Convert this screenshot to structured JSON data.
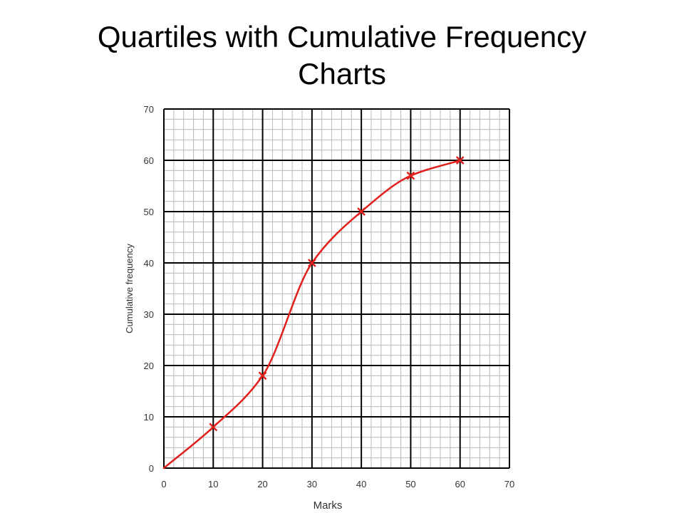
{
  "title_line1": "Quartiles with Cumulative Frequency",
  "title_line2": "Charts",
  "colors": {
    "curve": "#e0201c",
    "marker": "#e0201c",
    "grid_major": "#000000",
    "grid_minor": "#b8b8b8",
    "text": "#333333"
  },
  "chart_data": {
    "type": "line",
    "xlabel": "Marks",
    "ylabel": "Cumulative frequency",
    "xlim": [
      0,
      70
    ],
    "ylim": [
      0,
      70
    ],
    "x_ticks": [
      0,
      10,
      20,
      30,
      40,
      50,
      60,
      70
    ],
    "y_ticks": [
      0,
      10,
      20,
      30,
      40,
      50,
      60,
      70
    ],
    "minor_step": 2,
    "grid": true,
    "smooth": true,
    "series": [
      {
        "x": [
          0,
          10,
          20,
          30,
          40,
          50,
          60
        ],
        "y": [
          0,
          8,
          18,
          40,
          50,
          57,
          60
        ],
        "markers": [
          false,
          true,
          true,
          true,
          true,
          true,
          true
        ]
      }
    ]
  }
}
